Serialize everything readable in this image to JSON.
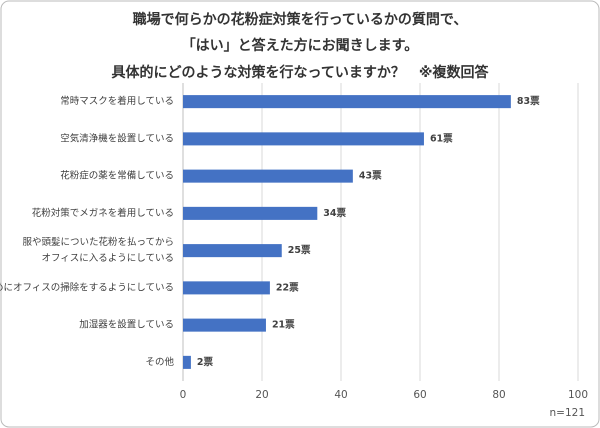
{
  "chart_data": {
    "type": "barh",
    "title": [
      "職場で何らかの花粉症対策を行っているかの質問で、",
      "「はい」と答えた方にお聞きします。",
      "具体的にどのような対策を行なっていますか？　※複数回答"
    ],
    "categories": [
      "常時マスクを着用している",
      "空気清浄機を設置している",
      "花粉症の薬を常備している",
      "花粉対策でメガネを着用している",
      [
        "服や頭髪についた花粉を払ってから",
        "オフィスに入るようにしている"
      ],
      "こまめにオフィスの掃除をするようにしている",
      "加湿器を設置している",
      "その他"
    ],
    "values": [
      83,
      61,
      43,
      34,
      25,
      22,
      21,
      2
    ],
    "value_labels": [
      "83票",
      "61票",
      "43票",
      "34票",
      "25票",
      "22票",
      "21票",
      "2票"
    ],
    "color": "#4472c4",
    "xlim": [
      0,
      100
    ],
    "xticks": [
      0,
      20,
      40,
      60,
      80,
      100
    ],
    "grid": true,
    "note": "n=121"
  }
}
